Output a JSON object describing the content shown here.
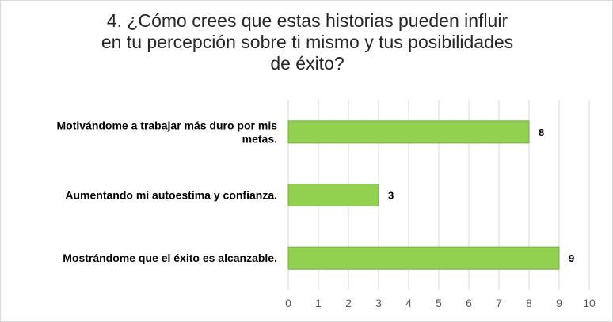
{
  "chart_data": {
    "type": "bar",
    "orientation": "horizontal",
    "title_lines": [
      "4. ¿Cómo crees que estas historias pueden influir",
      "en tu percepción sobre ti mismo y tus posibilidades",
      "de éxito?"
    ],
    "categories": [
      [
        "Motivándome a trabajar más duro por mis",
        "metas."
      ],
      [
        "Aumentando mi autoestima y confianza."
      ],
      [
        "Mostrándome que el éxito es alcanzable."
      ]
    ],
    "values": [
      8,
      3,
      9
    ],
    "data_labels": [
      "8",
      "3",
      "9"
    ],
    "xlim": [
      0,
      10
    ],
    "x_ticks": [
      "0",
      "1",
      "2",
      "3",
      "4",
      "5",
      "6",
      "7",
      "8",
      "9",
      "10"
    ],
    "grid": true,
    "legend": "none",
    "colors": {
      "bar": "#92d050",
      "bar_border": "#70ad47",
      "grid": "#d9d9d9",
      "tick_text": "#595959",
      "title_text": "#262626"
    }
  }
}
